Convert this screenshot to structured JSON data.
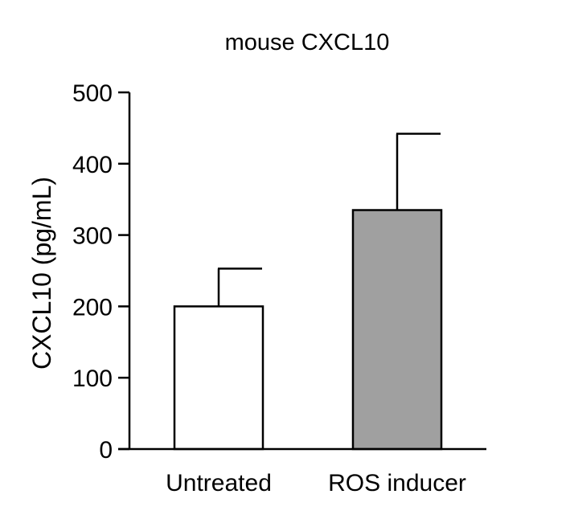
{
  "chart_data": {
    "type": "bar",
    "title": "mouse CXCL10",
    "xlabel": "",
    "ylabel": "CXCL10 (pg/mL)",
    "categories": [
      "Untreated",
      "ROS inducer"
    ],
    "values": [
      200,
      335
    ],
    "error_upper": [
      253,
      442
    ],
    "ylim": [
      0,
      500
    ],
    "yticks": [
      0,
      100,
      200,
      300,
      400,
      500
    ],
    "ytick_labels": [
      "0",
      "100",
      "200",
      "300",
      "400",
      "500"
    ],
    "bar_colors": [
      "#ffffff",
      "#a0a0a0"
    ],
    "edge_color": "#000000",
    "grid": false,
    "legend": "none"
  }
}
